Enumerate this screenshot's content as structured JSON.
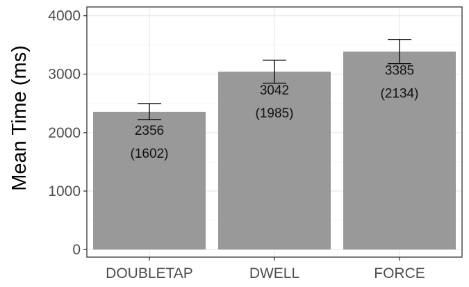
{
  "chart_data": {
    "type": "bar",
    "categories": [
      "DOUBLETAP",
      "DWELL",
      "FORCE"
    ],
    "values": [
      2356,
      3042,
      3385
    ],
    "error_bars": [
      {
        "low": 2220,
        "high": 2495
      },
      {
        "low": 2845,
        "high": 3240
      },
      {
        "low": 3180,
        "high": 3595
      }
    ],
    "value_labels": [
      "2356",
      "3042",
      "3385"
    ],
    "sd_labels": [
      "(1602)",
      "(1985)",
      "(2134)"
    ],
    "xlabel": "",
    "ylabel": "Mean Time (ms)",
    "ylim": [
      -130,
      4150
    ],
    "yticks": [
      0,
      1000,
      2000,
      3000,
      4000
    ],
    "ytick_labels": [
      "0",
      "1000",
      "2000",
      "3000",
      "4000"
    ],
    "grid": true,
    "legend": "none",
    "colors": {
      "bar": "#999999",
      "grid_major": "#ebebeb",
      "grid_minor": "#f5f5f5",
      "panel_border": "#333333",
      "error_bar": "#000000"
    }
  }
}
